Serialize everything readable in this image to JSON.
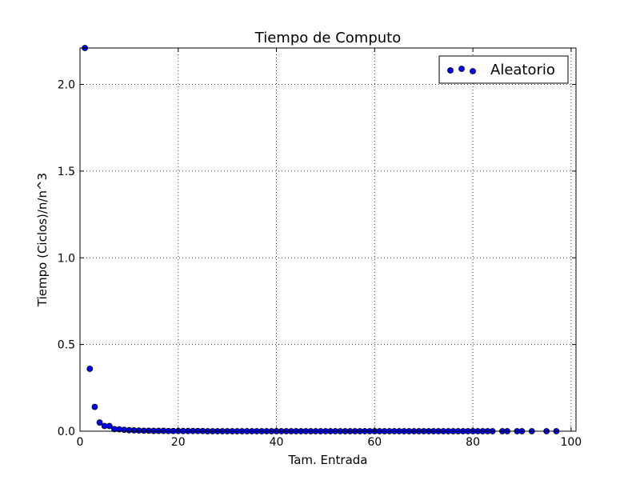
{
  "chart_data": {
    "type": "scatter",
    "title": "Tiempo de Computo",
    "xlabel": "Tam. Entrada",
    "ylabel": "Tiempo (Ciclos)/n/n^3",
    "xlim": [
      0,
      101
    ],
    "ylim": [
      0,
      2.21
    ],
    "xticks": [
      0,
      20,
      40,
      60,
      80,
      100
    ],
    "yticks": [
      0.0,
      0.5,
      1.0,
      1.5,
      2.0
    ],
    "xtick_labels": [
      "0",
      "20",
      "40",
      "60",
      "80",
      "100"
    ],
    "ytick_labels": [
      "0.0",
      "0.5",
      "1.0",
      "1.5",
      "2.0"
    ],
    "grid": true,
    "legend_position": "top-right",
    "colors": {
      "marker_fill": "#0000ff",
      "marker_edge": "#000000"
    },
    "series": [
      {
        "name": "Aleatorio",
        "x": [
          1,
          2,
          3,
          4,
          5,
          6,
          7,
          8,
          9,
          10,
          11,
          12,
          13,
          14,
          15,
          16,
          17,
          18,
          19,
          20,
          21,
          22,
          23,
          24,
          25,
          26,
          27,
          28,
          29,
          30,
          31,
          32,
          33,
          34,
          35,
          36,
          37,
          38,
          39,
          40,
          41,
          42,
          43,
          44,
          45,
          46,
          47,
          48,
          49,
          50,
          51,
          52,
          53,
          54,
          55,
          56,
          57,
          58,
          59,
          60,
          61,
          62,
          63,
          64,
          65,
          66,
          67,
          68,
          69,
          70,
          71,
          72,
          73,
          74,
          75,
          76,
          77,
          78,
          79,
          80,
          81,
          82,
          83,
          84,
          86,
          87,
          89,
          90,
          92,
          95,
          97
        ],
        "y": [
          2.21,
          0.36,
          0.14,
          0.05,
          0.03,
          0.03,
          0.012,
          0.011,
          0.008,
          0.006,
          0.005,
          0.004,
          0.003,
          0.003,
          0.002,
          0.002,
          0.002,
          0.001,
          0.001,
          0.001,
          0.001,
          0.001,
          0.001,
          0.001,
          0.001,
          0,
          0,
          0,
          0,
          0,
          0,
          0,
          0,
          0,
          0,
          0,
          0,
          0,
          0,
          0,
          0,
          0,
          0,
          0,
          0,
          0,
          0,
          0,
          0,
          0,
          0,
          0,
          0,
          0,
          0,
          0,
          0,
          0,
          0,
          0,
          0,
          0,
          0,
          0,
          0,
          0,
          0,
          0,
          0,
          0,
          0,
          0,
          0,
          0,
          0,
          0,
          0,
          0,
          0,
          0,
          0,
          0,
          0,
          0,
          0,
          0,
          0,
          0,
          0,
          0,
          0
        ]
      }
    ]
  }
}
